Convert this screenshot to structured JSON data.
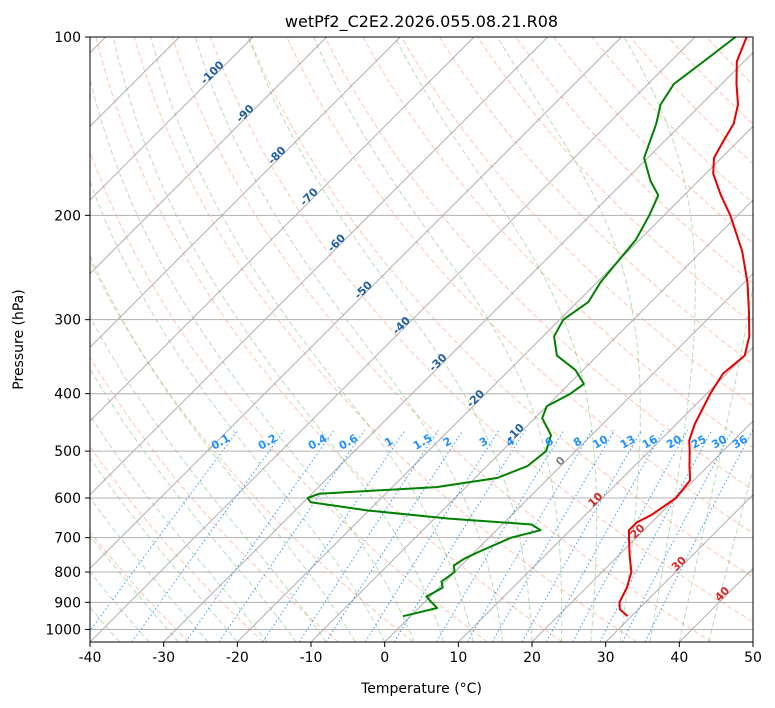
{
  "chart_data": {
    "type": "line",
    "title": "wetPf2_C2E2.2026.055.08.21.R08",
    "xlabel": "Temperature (°C)",
    "ylabel": "Pressure (hPa)",
    "xlim": [
      -40,
      50
    ],
    "ylim": [
      1050,
      100
    ],
    "y_scale": "log",
    "grid": true,
    "x_ticks": [
      -40,
      -30,
      -20,
      -10,
      0,
      10,
      20,
      30,
      40,
      50
    ],
    "y_ticks": [
      100,
      200,
      300,
      400,
      500,
      600,
      700,
      800,
      900,
      1000
    ],
    "colors": {
      "temperature": "#e60000",
      "dewpoint": "#008000",
      "dry_adiabat": "#ff7f50",
      "moist_adiabat": "#2ca02c",
      "mixing_ratio": "#1e90ff",
      "isotherm": "#808080",
      "isotherm_label": "#1f5fa0",
      "isotherm_label_warm": "#d62728"
    },
    "series": [
      {
        "key": "temperature",
        "points": [
          {
            "p": 950,
            "t": 29.5
          },
          {
            "p": 925,
            "t": 27.5
          },
          {
            "p": 900,
            "t": 26.5
          },
          {
            "p": 875,
            "t": 26.0
          },
          {
            "p": 850,
            "t": 25.5
          },
          {
            "p": 800,
            "t": 24.0
          },
          {
            "p": 750,
            "t": 21.5
          },
          {
            "p": 700,
            "t": 19.0
          },
          {
            "p": 680,
            "t": 18.0
          },
          {
            "p": 660,
            "t": 18.0
          },
          {
            "p": 640,
            "t": 19.0
          },
          {
            "p": 600,
            "t": 20.0
          },
          {
            "p": 560,
            "t": 19.5
          },
          {
            "p": 530,
            "t": 17.5
          },
          {
            "p": 500,
            "t": 15.5
          },
          {
            "p": 480,
            "t": 14.0
          },
          {
            "p": 450,
            "t": 12.5
          },
          {
            "p": 400,
            "t": 10.5
          },
          {
            "p": 370,
            "t": 9.5
          },
          {
            "p": 345,
            "t": 10.0
          },
          {
            "p": 320,
            "t": 8.0
          },
          {
            "p": 290,
            "t": 4.5
          },
          {
            "p": 260,
            "t": 0.5
          },
          {
            "p": 230,
            "t": -4.5
          },
          {
            "p": 200,
            "t": -11.0
          },
          {
            "p": 185,
            "t": -15.0
          },
          {
            "p": 170,
            "t": -19.0
          },
          {
            "p": 160,
            "t": -21.0
          },
          {
            "p": 150,
            "t": -22.0
          },
          {
            "p": 140,
            "t": -23.0
          },
          {
            "p": 130,
            "t": -25.0
          },
          {
            "p": 120,
            "t": -28.0
          },
          {
            "p": 110,
            "t": -31.0
          },
          {
            "p": 100,
            "t": -33.0
          }
        ]
      },
      {
        "key": "dewpoint",
        "points": [
          {
            "p": 950,
            "t": -1.0
          },
          {
            "p": 920,
            "t": 2.5
          },
          {
            "p": 900,
            "t": 1.0
          },
          {
            "p": 880,
            "t": -0.5
          },
          {
            "p": 850,
            "t": 0.5
          },
          {
            "p": 830,
            "t": -0.5
          },
          {
            "p": 800,
            "t": 0.0
          },
          {
            "p": 780,
            "t": -1.0
          },
          {
            "p": 760,
            "t": -0.5
          },
          {
            "p": 740,
            "t": 0.5
          },
          {
            "p": 700,
            "t": 3.0
          },
          {
            "p": 680,
            "t": 6.0
          },
          {
            "p": 665,
            "t": 4.0
          },
          {
            "p": 650,
            "t": -8.0
          },
          {
            "p": 630,
            "t": -20.0
          },
          {
            "p": 610,
            "t": -29.0
          },
          {
            "p": 600,
            "t": -30.0
          },
          {
            "p": 590,
            "t": -29.0
          },
          {
            "p": 575,
            "t": -14.0
          },
          {
            "p": 555,
            "t": -7.0
          },
          {
            "p": 530,
            "t": -4.5
          },
          {
            "p": 500,
            "t": -4.0
          },
          {
            "p": 470,
            "t": -5.5
          },
          {
            "p": 440,
            "t": -9.0
          },
          {
            "p": 420,
            "t": -10.0
          },
          {
            "p": 400,
            "t": -8.5
          },
          {
            "p": 385,
            "t": -8.0
          },
          {
            "p": 365,
            "t": -11.0
          },
          {
            "p": 345,
            "t": -15.5
          },
          {
            "p": 320,
            "t": -18.5
          },
          {
            "p": 300,
            "t": -19.5
          },
          {
            "p": 280,
            "t": -18.5
          },
          {
            "p": 260,
            "t": -19.5
          },
          {
            "p": 240,
            "t": -20.0
          },
          {
            "p": 220,
            "t": -20.5
          },
          {
            "p": 200,
            "t": -22.0
          },
          {
            "p": 185,
            "t": -23.5
          },
          {
            "p": 175,
            "t": -26.5
          },
          {
            "p": 160,
            "t": -30.5
          },
          {
            "p": 140,
            "t": -33.5
          },
          {
            "p": 130,
            "t": -35.5
          },
          {
            "p": 120,
            "t": -36.5
          },
          {
            "p": 110,
            "t": -35.5
          },
          {
            "p": 100,
            "t": -34.5
          }
        ]
      }
    ],
    "isotherm_labels": [
      {
        "text": "-100",
        "t": -100,
        "p": 116
      },
      {
        "text": "-90",
        "t": -90,
        "p": 136
      },
      {
        "text": "-80",
        "t": -80,
        "p": 160
      },
      {
        "text": "-70",
        "t": -70,
        "p": 188
      },
      {
        "text": "-60",
        "t": -60,
        "p": 225
      },
      {
        "text": "-50",
        "t": -50,
        "p": 270
      },
      {
        "text": "-40",
        "t": -40,
        "p": 310
      },
      {
        "text": "-30",
        "t": -30,
        "p": 358
      },
      {
        "text": "-20",
        "t": -20,
        "p": 412
      },
      {
        "text": "-10",
        "t": -10,
        "p": 470
      },
      {
        "text": "0",
        "t": 0,
        "p": 525
      },
      {
        "text": "10",
        "t": 10,
        "p": 610
      },
      {
        "text": "20",
        "t": 20,
        "p": 690
      },
      {
        "text": "30",
        "t": 30,
        "p": 782
      },
      {
        "text": "40",
        "t": 40,
        "p": 880
      }
    ],
    "mixing_ratio_labels": [
      "0.1",
      "0.2",
      "0.4",
      "0.6",
      "1",
      "1.5",
      "2",
      "3",
      "4",
      "6",
      "8",
      "10",
      "13",
      "16",
      "20",
      "25",
      "30",
      "36"
    ],
    "mixing_ratio_label_pressure": 500
  }
}
